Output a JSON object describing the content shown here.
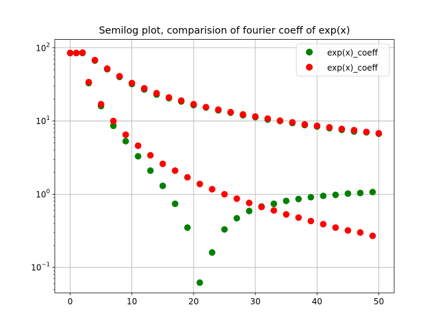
{
  "chart_data": {
    "type": "scatter",
    "title": "Semilog plot, comparision of fourier coeff of exp(x)",
    "xlabel": "",
    "ylabel": "",
    "yscale": "log",
    "xlim": [
      -2.5,
      52.5
    ],
    "ylim": [
      0.045,
      130
    ],
    "grid": true,
    "legend_position": "top-right",
    "x_ticks": [
      {
        "value": 0,
        "label": "0"
      },
      {
        "value": 10,
        "label": "10"
      },
      {
        "value": 20,
        "label": "20"
      },
      {
        "value": 30,
        "label": "30"
      },
      {
        "value": 40,
        "label": "40"
      },
      {
        "value": 50,
        "label": "50"
      }
    ],
    "y_ticks": [
      {
        "value": 0.1,
        "base": "10",
        "exp": "−1"
      },
      {
        "value": 1,
        "base": "10",
        "exp": "0"
      },
      {
        "value": 10,
        "base": "10",
        "exp": "1"
      },
      {
        "value": 100,
        "base": "10",
        "exp": "2"
      }
    ],
    "series": [
      {
        "name": "exp(x)_coeff",
        "color": "#008000",
        "points": [
          [
            0,
            85
          ],
          [
            1,
            85
          ],
          [
            3,
            33
          ],
          [
            5,
            16
          ],
          [
            7,
            8.6
          ],
          [
            9,
            5.3
          ],
          [
            11,
            3.3
          ],
          [
            13,
            2.1
          ],
          [
            15,
            1.3
          ],
          [
            17,
            0.74
          ],
          [
            19,
            0.35
          ],
          [
            21,
            0.062
          ],
          [
            23,
            0.16
          ],
          [
            25,
            0.33
          ],
          [
            27,
            0.47
          ],
          [
            29,
            0.59
          ],
          [
            31,
            0.68
          ],
          [
            33,
            0.74
          ],
          [
            35,
            0.81
          ],
          [
            37,
            0.86
          ],
          [
            39,
            0.91
          ],
          [
            41,
            0.95
          ],
          [
            43,
            0.98
          ],
          [
            45,
            1.02
          ],
          [
            47,
            1.04
          ],
          [
            49,
            1.07
          ],
          [
            2,
            85
          ],
          [
            4,
            67
          ],
          [
            6,
            51
          ],
          [
            8,
            40
          ],
          [
            10,
            32
          ],
          [
            12,
            27
          ],
          [
            14,
            23
          ],
          [
            16,
            20.5
          ],
          [
            18,
            18.5
          ],
          [
            20,
            16.5
          ],
          [
            22,
            15.3
          ],
          [
            24,
            14
          ],
          [
            26,
            13
          ],
          [
            28,
            12
          ],
          [
            30,
            11.3
          ],
          [
            32,
            10.5
          ],
          [
            34,
            10
          ],
          [
            36,
            9.4
          ],
          [
            38,
            8.8
          ],
          [
            40,
            8.4
          ],
          [
            42,
            8
          ],
          [
            44,
            7.6
          ],
          [
            46,
            7.2
          ],
          [
            48,
            7
          ],
          [
            50,
            6.7
          ]
        ]
      },
      {
        "name": "exp(x)_coeff",
        "color": "#ff0000",
        "points": [
          [
            0,
            85
          ],
          [
            1,
            85
          ],
          [
            2,
            86
          ],
          [
            3,
            34
          ],
          [
            4,
            68
          ],
          [
            5,
            17
          ],
          [
            6,
            52
          ],
          [
            7,
            10
          ],
          [
            8,
            41
          ],
          [
            9,
            6.5
          ],
          [
            10,
            33
          ],
          [
            11,
            4.6
          ],
          [
            12,
            28
          ],
          [
            13,
            3.4
          ],
          [
            14,
            24
          ],
          [
            15,
            2.6
          ],
          [
            16,
            21
          ],
          [
            17,
            2.1
          ],
          [
            18,
            19
          ],
          [
            19,
            1.7
          ],
          [
            20,
            17
          ],
          [
            21,
            1.38
          ],
          [
            22,
            15.5
          ],
          [
            23,
            1.17
          ],
          [
            24,
            14.3
          ],
          [
            25,
            1.0
          ],
          [
            26,
            13.2
          ],
          [
            27,
            0.87
          ],
          [
            28,
            12.3
          ],
          [
            29,
            0.76
          ],
          [
            30,
            11.5
          ],
          [
            31,
            0.67
          ],
          [
            32,
            10.8
          ],
          [
            33,
            0.6
          ],
          [
            34,
            10.1
          ],
          [
            35,
            0.53
          ],
          [
            36,
            9.6
          ],
          [
            37,
            0.48
          ],
          [
            38,
            9.0
          ],
          [
            39,
            0.43
          ],
          [
            40,
            8.6
          ],
          [
            41,
            0.39
          ],
          [
            42,
            8.2
          ],
          [
            43,
            0.35
          ],
          [
            44,
            7.8
          ],
          [
            45,
            0.32
          ],
          [
            46,
            7.5
          ],
          [
            47,
            0.3
          ],
          [
            48,
            7.1
          ],
          [
            49,
            0.27
          ],
          [
            50,
            6.8
          ]
        ]
      }
    ]
  }
}
